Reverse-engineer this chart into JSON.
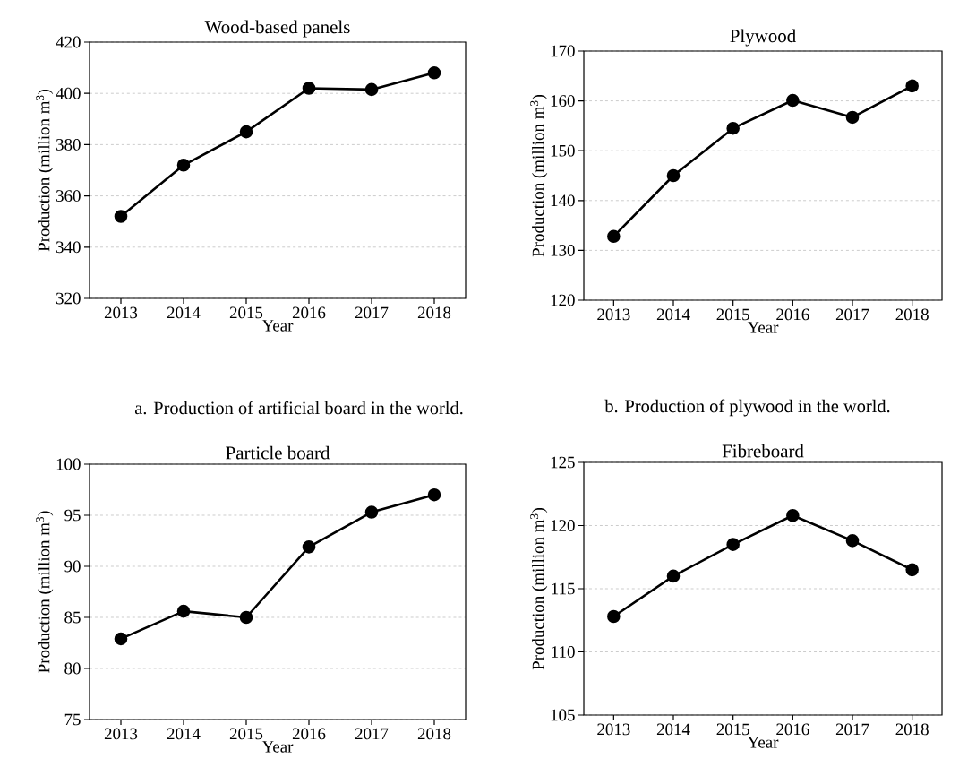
{
  "chart_data": [
    {
      "type": "line",
      "title": "Wood-based panels",
      "xlabel": "Year",
      "ylabel": "Production (million m$^{3}$)",
      "categories": [
        "2013",
        "2014",
        "2015",
        "2016",
        "2017",
        "2018"
      ],
      "series": [
        {
          "color": "#000000",
          "values": [
            352,
            372,
            385,
            402,
            401.5,
            408
          ]
        }
      ],
      "ylim": [
        320,
        420
      ],
      "yticks": [
        320,
        340,
        360,
        380,
        400,
        420
      ],
      "grid": "y",
      "marker": "circle",
      "line_style": "solid",
      "annotations": [
        "a. Production of artificial board in the world."
      ]
    },
    {
      "type": "line",
      "title": "Plywood",
      "xlabel": "Year",
      "ylabel": "Production (million m$^{3}$)",
      "categories": [
        "2013",
        "2014",
        "2015",
        "2016",
        "2017",
        "2018"
      ],
      "series": [
        {
          "color": "#000000",
          "values": [
            132.8,
            145,
            154.5,
            160.1,
            156.7,
            163
          ]
        }
      ],
      "ylim": [
        120,
        170
      ],
      "yticks": [
        120,
        130,
        140,
        150,
        160,
        170
      ],
      "grid": "y",
      "marker": "circle",
      "line_style": "solid",
      "annotations": [
        "b. Production of plywood in the world."
      ]
    },
    {
      "type": "line",
      "title": "Particle board",
      "xlabel": "Year",
      "ylabel": "Production (million m$^{3}$)",
      "categories": [
        "2013",
        "2014",
        "2015",
        "2016",
        "2017",
        "2018"
      ],
      "series": [
        {
          "color": "#000000",
          "values": [
            82.9,
            85.6,
            85.0,
            91.9,
            95.3,
            97.0
          ]
        }
      ],
      "ylim": [
        75,
        100
      ],
      "yticks": [
        75,
        80,
        85,
        90,
        95,
        100
      ],
      "grid": "y",
      "marker": "circle",
      "line_style": "solid"
    },
    {
      "type": "line",
      "title": "Fibreboard",
      "xlabel": "Year",
      "ylabel": "Production (million m$^{3}$)",
      "categories": [
        "2013",
        "2014",
        "2015",
        "2016",
        "2017",
        "2018"
      ],
      "series": [
        {
          "color": "#000000",
          "values": [
            112.8,
            116.0,
            118.5,
            120.8,
            118.8,
            116.5
          ]
        }
      ],
      "ylim": [
        105,
        125
      ],
      "yticks": [
        105,
        110,
        115,
        120,
        125
      ],
      "grid": "y",
      "marker": "circle",
      "line_style": "solid"
    }
  ]
}
